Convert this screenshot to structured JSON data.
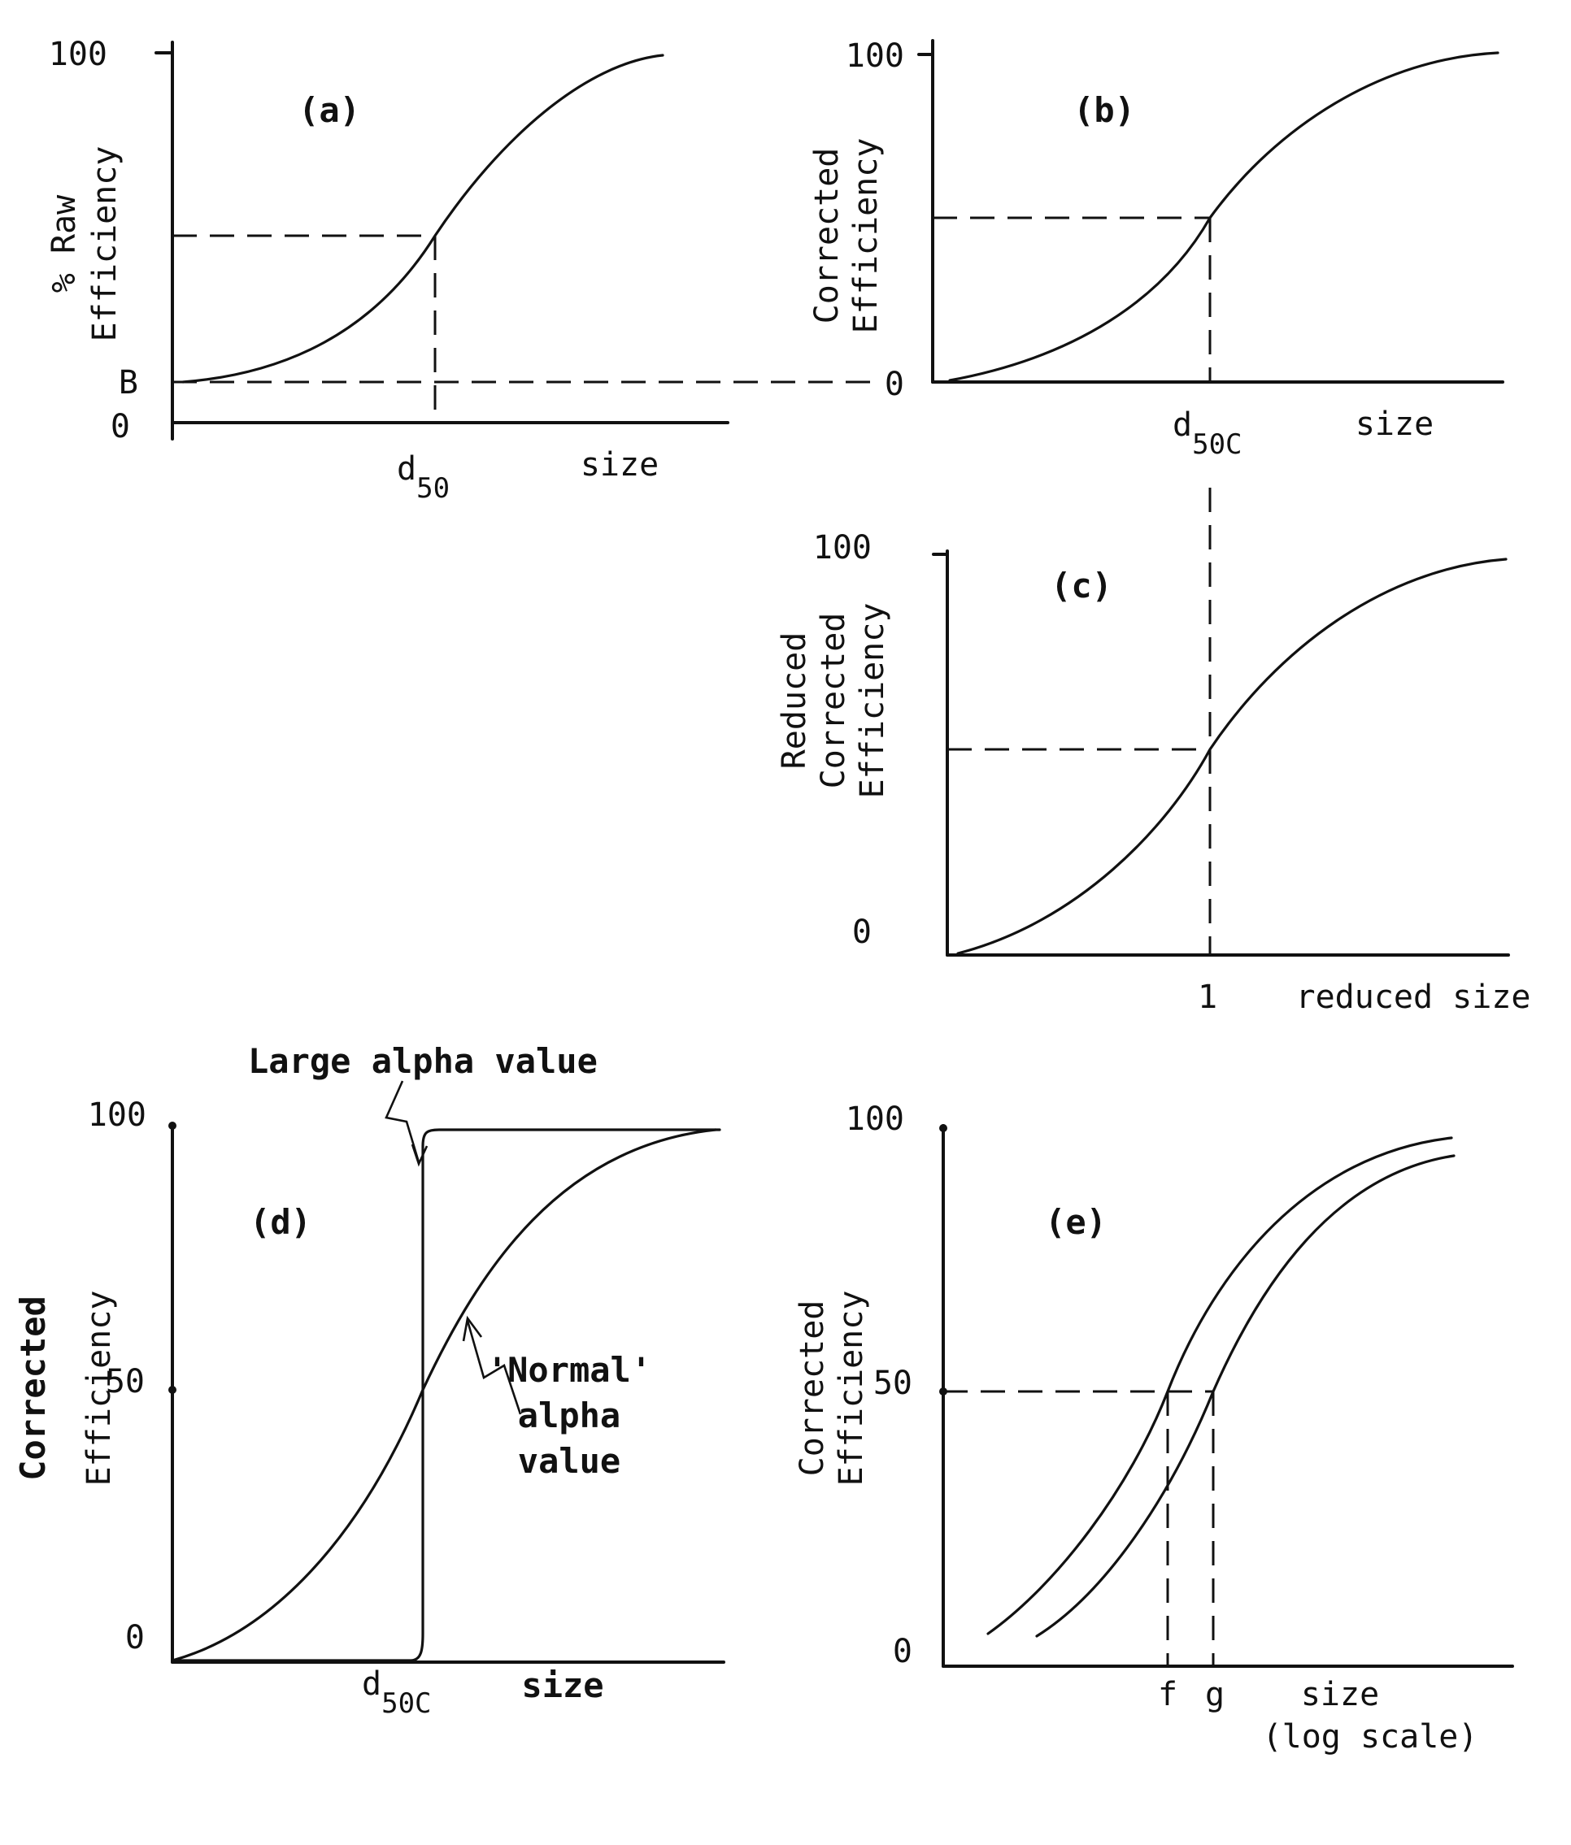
{
  "panels": {
    "a": {
      "label": "(a)",
      "ylabel_line1": "% Raw",
      "ylabel_line2": "Efficiency",
      "y_tick_top": "100",
      "y_tick_b": "B",
      "y_tick_zero": "0",
      "x_marker_main": "d",
      "x_marker_sub": "50",
      "xlabel": "size"
    },
    "b": {
      "label": "(b)",
      "ylabel_line1": "Corrected",
      "ylabel_line2": "Efficiency",
      "y_tick_top": "100",
      "y_tick_zero": "0",
      "x_marker_main": "d",
      "x_marker_sub": "50C",
      "xlabel": "size"
    },
    "c": {
      "label": "(c)",
      "ylabel_line1": "Reduced",
      "ylabel_line2": "Corrected",
      "ylabel_line3": "Efficiency",
      "y_tick_top": "100",
      "y_tick_zero": "0",
      "x_marker": "1",
      "xlabel": "reduced size"
    },
    "d": {
      "label": "(d)",
      "ylabel_line1": "Corrected",
      "ylabel_line2": "Efficiency",
      "y_tick_top": "100",
      "y_tick_mid": "50",
      "y_tick_zero": "0",
      "x_marker_main": "d",
      "x_marker_sub": "50C",
      "xlabel": "size",
      "annotation_large": "Large alpha value",
      "annotation_normal_line1": "'Normal'",
      "annotation_normal_line2": "alpha",
      "annotation_normal_line3": "value"
    },
    "e": {
      "label": "(e)",
      "ylabel_line1": "Corrected",
      "ylabel_line2": "Efficiency",
      "y_tick_top": "100",
      "y_tick_mid": "50",
      "y_tick_zero": "0",
      "x_marker_f": "f",
      "x_marker_g": "g",
      "xlabel_line1": "size",
      "xlabel_line2": "(log scale)"
    }
  }
}
